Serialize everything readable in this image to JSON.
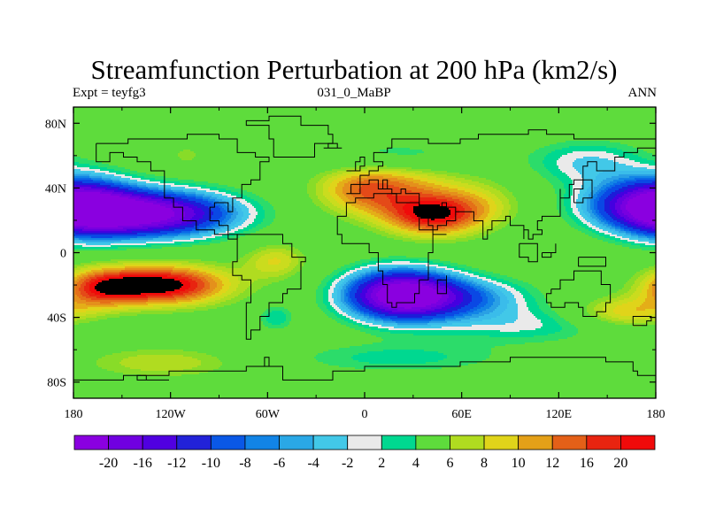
{
  "title": "Streamfunction Perturbation at 200 hPa (km2/s)",
  "left_string": "Expt = teyfg3",
  "center_string": "031_0_MaBP",
  "right_string": "ANN",
  "chart_data": {
    "type": "heatmap",
    "projection": "cylindrical-equidistant",
    "xlim": [
      -180,
      180
    ],
    "ylim": [
      -90,
      90
    ],
    "x_ticks": [
      {
        "value": -180,
        "label": "180"
      },
      {
        "value": -120,
        "label": "120W"
      },
      {
        "value": -60,
        "label": "60W"
      },
      {
        "value": 0,
        "label": "0"
      },
      {
        "value": 60,
        "label": "60E"
      },
      {
        "value": 120,
        "label": "120E"
      },
      {
        "value": 180,
        "label": "180"
      }
    ],
    "y_ticks": [
      {
        "value": 80,
        "label": "80N"
      },
      {
        "value": 40,
        "label": "40N"
      },
      {
        "value": 0,
        "label": "0"
      },
      {
        "value": -40,
        "label": "40S"
      },
      {
        "value": -80,
        "label": "80S"
      }
    ],
    "contour_levels": [
      -20,
      -18,
      -16,
      -14,
      -12,
      -10,
      -9,
      -8,
      -7,
      -6,
      -5,
      -4,
      -3,
      -2,
      2,
      3,
      4,
      5,
      6,
      7,
      8,
      9,
      10,
      11,
      12,
      14,
      16,
      18,
      20
    ],
    "colorbar_labels": [
      "-20",
      "-16",
      "-12",
      "-10",
      "-8",
      "-6",
      "-4",
      "-2",
      "2",
      "4",
      "6",
      "8",
      "10",
      "12",
      "16",
      "20"
    ],
    "colors": [
      "#8a00e0",
      "#7800e0",
      "#6400e0",
      "#4400e0",
      "#1c1cd8",
      "#0a48e4",
      "#0a68e6",
      "#1284e6",
      "#2aa0e4",
      "#3abcea",
      "#42c8e8",
      "#eaeaea",
      "#00d890",
      "#2cdc6a",
      "#5edc3c",
      "#88dc28",
      "#b0dc20",
      "#cadc1e",
      "#e0d41a",
      "#e4ae18",
      "#e4901c",
      "#e47018",
      "#e44a18",
      "#e82410",
      "#f00a0a"
    ],
    "features": [
      {
        "lon": -132,
        "lat": 24,
        "sx": 36,
        "sy": 10,
        "amp": -21
      },
      {
        "lon": -172,
        "lat": 28,
        "sx": 22,
        "sy": 13,
        "amp": -12
      },
      {
        "lon": 168,
        "lat": 30,
        "sx": 26,
        "sy": 11,
        "amp": -11
      },
      {
        "lon": 138,
        "lat": 56,
        "sx": 26,
        "sy": 10,
        "amp": -5
      },
      {
        "lon": 15,
        "lat": 60,
        "sx": 40,
        "sy": 7,
        "amp": -3
      },
      {
        "lon": -125,
        "lat": -20,
        "sx": 30,
        "sy": 9,
        "amp": 13
      },
      {
        "lon": -165,
        "lat": -22,
        "sx": 18,
        "sy": 9,
        "amp": 7
      },
      {
        "lon": 42,
        "lat": 24,
        "sx": 22,
        "sy": 10,
        "amp": 12
      },
      {
        "lon": 0,
        "lat": 38,
        "sx": 22,
        "sy": 11,
        "amp": 7.5
      },
      {
        "lon": 30,
        "lat": 45,
        "sx": 30,
        "sy": 8,
        "amp": 3
      },
      {
        "lon": 75,
        "lat": 30,
        "sx": 18,
        "sy": 10,
        "amp": 3
      },
      {
        "lon": 22,
        "lat": -26,
        "sx": 24,
        "sy": 11,
        "amp": -22
      },
      {
        "lon": 60,
        "lat": -28,
        "sx": 30,
        "sy": 9,
        "amp": -8
      },
      {
        "lon": 100,
        "lat": -45,
        "sx": 40,
        "sy": 8,
        "amp": -4
      },
      {
        "lon": 20,
        "lat": -65,
        "sx": 50,
        "sy": 7,
        "amp": -3.5
      },
      {
        "lon": -125,
        "lat": -68,
        "sx": 35,
        "sy": 7,
        "amp": 4
      },
      {
        "lon": -55,
        "lat": -5,
        "sx": 14,
        "sy": 8,
        "amp": 5
      },
      {
        "lon": -55,
        "lat": -40,
        "sx": 8,
        "sy": 6,
        "amp": -4
      },
      {
        "lon": 160,
        "lat": -37,
        "sx": 22,
        "sy": 7,
        "amp": 6
      },
      {
        "lon": -110,
        "lat": 60,
        "sx": 6,
        "sy": 4,
        "amp": 3
      }
    ],
    "coastlines": [
      [
        [
          -165,
          68
        ],
        [
          -145,
          70
        ],
        [
          -128,
          70
        ],
        [
          -110,
          72
        ],
        [
          -90,
          70
        ],
        [
          -80,
          68
        ],
        [
          -78,
          62
        ],
        [
          -68,
          58
        ],
        [
          -60,
          55
        ],
        [
          -66,
          45
        ],
        [
          -70,
          41
        ],
        [
          -76,
          35
        ],
        [
          -81,
          30
        ],
        [
          -81,
          25
        ],
        [
          -84,
          30
        ],
        [
          -92,
          29
        ],
        [
          -97,
          26
        ],
        [
          -97,
          20
        ],
        [
          -90,
          16
        ],
        [
          -84,
          10
        ],
        [
          -80,
          8
        ],
        [
          -84,
          10
        ],
        [
          -92,
          14
        ],
        [
          -105,
          20
        ],
        [
          -112,
          28
        ],
        [
          -118,
          34
        ],
        [
          -123,
          38
        ],
        [
          -124,
          45
        ],
        [
          -124,
          50
        ],
        [
          -132,
          55
        ],
        [
          -140,
          60
        ],
        [
          -150,
          61
        ],
        [
          -158,
          57
        ],
        [
          -165,
          60
        ],
        [
          -165,
          68
        ]
      ],
      [
        [
          -80,
          10
        ],
        [
          -72,
          12
        ],
        [
          -62,
          10
        ],
        [
          -52,
          5
        ],
        [
          -44,
          -2
        ],
        [
          -36,
          -6
        ],
        [
          -38,
          -13
        ],
        [
          -40,
          -22
        ],
        [
          -48,
          -26
        ],
        [
          -52,
          -32
        ],
        [
          -58,
          -38
        ],
        [
          -64,
          -42
        ],
        [
          -66,
          -48
        ],
        [
          -70,
          -54
        ],
        [
          -74,
          -50
        ],
        [
          -74,
          -40
        ],
        [
          -72,
          -30
        ],
        [
          -71,
          -18
        ],
        [
          -76,
          -14
        ],
        [
          -81,
          -5
        ],
        [
          -80,
          0
        ],
        [
          -78,
          6
        ],
        [
          -80,
          10
        ]
      ],
      [
        [
          -55,
          60
        ],
        [
          -44,
          60
        ],
        [
          -30,
          68
        ],
        [
          -20,
          72
        ],
        [
          -22,
          80
        ],
        [
          -40,
          83
        ],
        [
          -60,
          82
        ],
        [
          -72,
          78
        ],
        [
          -60,
          70
        ],
        [
          -55,
          60
        ]
      ],
      [
        [
          -18,
          15
        ],
        [
          -17,
          22
        ],
        [
          -10,
          30
        ],
        [
          -6,
          35
        ],
        [
          5,
          37
        ],
        [
          11,
          37
        ],
        [
          20,
          31
        ],
        [
          32,
          31
        ],
        [
          35,
          25
        ],
        [
          38,
          18
        ],
        [
          43,
          12
        ],
        [
          51,
          12
        ],
        [
          43,
          0
        ],
        [
          40,
          -10
        ],
        [
          39,
          -16
        ],
        [
          34,
          -24
        ],
        [
          30,
          -31
        ],
        [
          20,
          -35
        ],
        [
          18,
          -30
        ],
        [
          13,
          -20
        ],
        [
          12,
          -10
        ],
        [
          9,
          0
        ],
        [
          4,
          5
        ],
        [
          -8,
          5
        ],
        [
          -15,
          10
        ],
        [
          -18,
          15
        ]
      ],
      [
        [
          -10,
          36
        ],
        [
          -9,
          43
        ],
        [
          -2,
          44
        ],
        [
          -4,
          48
        ],
        [
          2,
          51
        ],
        [
          8,
          54
        ],
        [
          10,
          57
        ],
        [
          5,
          58
        ],
        [
          6,
          62
        ],
        [
          14,
          66
        ],
        [
          18,
          70
        ],
        [
          26,
          71
        ],
        [
          40,
          67
        ],
        [
          44,
          68
        ],
        [
          60,
          70
        ],
        [
          70,
          73
        ],
        [
          80,
          73
        ],
        [
          100,
          77
        ],
        [
          112,
          74
        ],
        [
          130,
          71
        ],
        [
          150,
          71
        ],
        [
          170,
          70
        ],
        [
          180,
          68
        ],
        [
          180,
          65
        ],
        [
          170,
          62
        ],
        [
          160,
          58
        ],
        [
          156,
          52
        ],
        [
          143,
          56
        ],
        [
          138,
          54
        ],
        [
          135,
          44
        ],
        [
          130,
          42
        ],
        [
          127,
          35
        ],
        [
          122,
          40
        ],
        [
          122,
          30
        ],
        [
          120,
          23
        ],
        [
          110,
          20
        ],
        [
          108,
          15
        ],
        [
          109,
          11
        ],
        [
          104,
          9
        ],
        [
          100,
          13
        ],
        [
          98,
          8
        ],
        [
          98,
          16
        ],
        [
          94,
          18
        ],
        [
          90,
          22
        ],
        [
          86,
          20
        ],
        [
          80,
          15
        ],
        [
          76,
          8
        ],
        [
          72,
          20
        ],
        [
          67,
          25
        ],
        [
          58,
          25
        ],
        [
          56,
          27
        ],
        [
          50,
          30
        ],
        [
          48,
          29
        ],
        [
          55,
          20
        ],
        [
          52,
          16
        ],
        [
          44,
          13
        ],
        [
          35,
          30
        ],
        [
          35,
          36
        ],
        [
          28,
          37
        ],
        [
          26,
          40
        ],
        [
          22,
          37
        ],
        [
          18,
          40
        ],
        [
          12,
          44
        ],
        [
          14,
          38
        ],
        [
          8,
          44
        ],
        [
          3,
          43
        ],
        [
          -2,
          37
        ],
        [
          -10,
          36
        ]
      ],
      [
        [
          114,
          -22
        ],
        [
          122,
          -18
        ],
        [
          130,
          -12
        ],
        [
          137,
          -12
        ],
        [
          142,
          -11
        ],
        [
          146,
          -19
        ],
        [
          153,
          -25
        ],
        [
          153,
          -32
        ],
        [
          150,
          -37
        ],
        [
          144,
          -38
        ],
        [
          140,
          -38
        ],
        [
          135,
          -34
        ],
        [
          131,
          -31
        ],
        [
          124,
          -33
        ],
        [
          116,
          -35
        ],
        [
          115,
          -30
        ],
        [
          113,
          -26
        ],
        [
          114,
          -22
        ]
      ],
      [
        [
          -180,
          -78
        ],
        [
          -150,
          -77
        ],
        [
          -120,
          -74
        ],
        [
          -90,
          -72
        ],
        [
          -72,
          -70
        ],
        [
          -60,
          -64
        ],
        [
          -62,
          -70
        ],
        [
          -50,
          -78
        ],
        [
          -20,
          -74
        ],
        [
          0,
          -70
        ],
        [
          30,
          -69
        ],
        [
          60,
          -67
        ],
        [
          90,
          -66
        ],
        [
          120,
          -66
        ],
        [
          150,
          -68
        ],
        [
          165,
          -72
        ],
        [
          170,
          -77
        ],
        [
          180,
          -78
        ]
      ],
      [
        [
          -135,
          -77
        ],
        [
          -140,
          -78
        ],
        [
          -120,
          -79
        ],
        [
          -135,
          -77
        ]
      ],
      [
        [
          44,
          -16
        ],
        [
          50,
          -15
        ],
        [
          50,
          -25
        ],
        [
          44,
          -24
        ],
        [
          44,
          -16
        ]
      ],
      [
        [
          -10,
          52
        ],
        [
          -5,
          55
        ],
        [
          -2,
          58
        ],
        [
          1,
          53
        ],
        [
          -4,
          50
        ],
        [
          -10,
          52
        ]
      ],
      [
        [
          130,
          31
        ],
        [
          135,
          34
        ],
        [
          140,
          36
        ],
        [
          142,
          41
        ],
        [
          140,
          44
        ],
        [
          135,
          38
        ],
        [
          130,
          31
        ]
      ],
      [
        [
          95,
          5
        ],
        [
          106,
          -6
        ],
        [
          102,
          -4
        ],
        [
          95,
          5
        ]
      ],
      [
        [
          132,
          -2
        ],
        [
          140,
          -3
        ],
        [
          148,
          -8
        ],
        [
          141,
          -9
        ],
        [
          132,
          -2
        ]
      ],
      [
        [
          110,
          1
        ],
        [
          118,
          7
        ],
        [
          119,
          1
        ],
        [
          116,
          -4
        ],
        [
          110,
          1
        ]
      ],
      [
        [
          -24,
          64
        ],
        [
          -14,
          65
        ],
        [
          -16,
          67
        ],
        [
          -22,
          66
        ],
        [
          -24,
          64
        ]
      ],
      [
        [
          167,
          -45
        ],
        [
          174,
          -41
        ],
        [
          178,
          -38
        ],
        [
          173,
          -40
        ],
        [
          167,
          -45
        ]
      ]
    ]
  }
}
